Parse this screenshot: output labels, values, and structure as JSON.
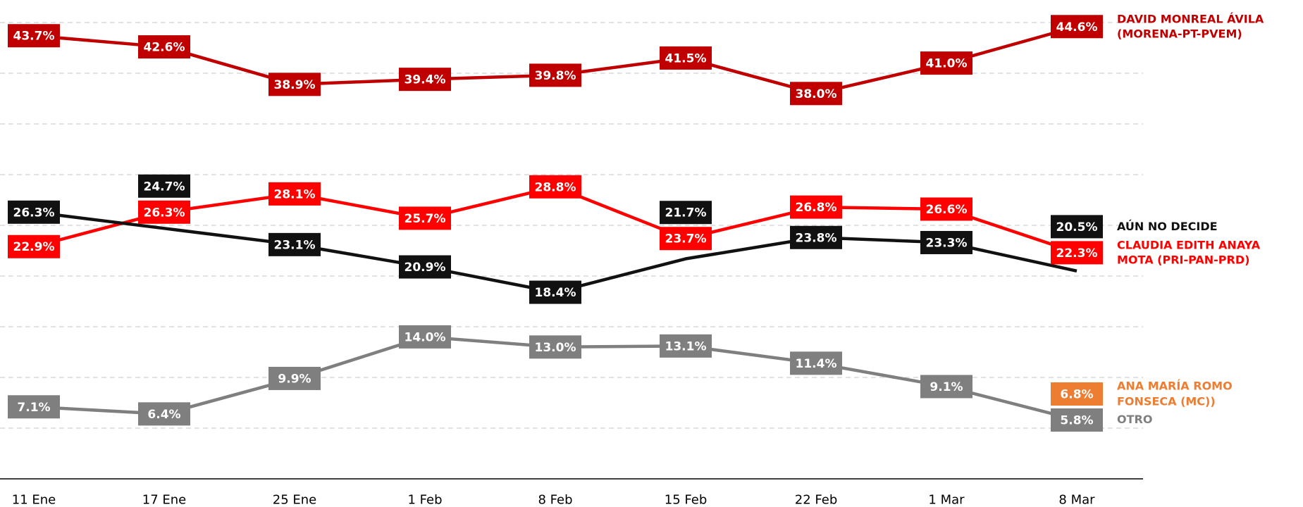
{
  "chart_data": {
    "type": "line",
    "categories": [
      "11 Ene",
      "17 Ene",
      "25 Ene",
      "1 Feb",
      "8 Feb",
      "15 Feb",
      "22 Feb",
      "1 Mar",
      "8 Mar"
    ],
    "ylim": [
      0,
      45
    ],
    "yticks": [
      0,
      5,
      10,
      15,
      20,
      25,
      30,
      35,
      40,
      45
    ],
    "grid": true,
    "series": [
      {
        "name": "DAVID MONREAL ÁVILA (MORENA-PT-PVEM)",
        "color": "#c00000",
        "values": [
          43.7,
          42.6,
          38.9,
          39.4,
          39.8,
          41.5,
          38.0,
          41.0,
          44.6
        ],
        "value_labels": [
          "43.7%",
          "42.6%",
          "38.9%",
          "39.4%",
          "39.8%",
          "41.5%",
          "38.0%",
          "41.0%",
          "44.6%"
        ]
      },
      {
        "name": "CLAUDIA EDITH ANAYA MOTA (PRI-PAN-PRD)",
        "color": "#ff0000",
        "values": [
          22.9,
          26.3,
          28.1,
          25.7,
          28.8,
          23.7,
          26.8,
          26.6,
          22.3
        ],
        "value_labels": [
          "22.9%",
          "26.3%",
          "28.1%",
          "25.7%",
          "28.8%",
          "23.7%",
          "26.8%",
          "26.6%",
          "22.3%"
        ]
      },
      {
        "name": "AÚN NO DECIDE",
        "color": "#111111",
        "values": [
          26.3,
          24.7,
          23.1,
          20.9,
          18.4,
          21.7,
          23.8,
          23.3,
          20.5
        ],
        "value_labels": [
          "26.3%",
          "24.7%",
          "23.1%",
          "20.9%",
          "18.4%",
          "21.7%",
          "23.8%",
          "23.3%",
          "20.5%"
        ]
      },
      {
        "name": "OTRO",
        "color": "#7f7f7f",
        "values": [
          7.1,
          6.4,
          9.9,
          14.0,
          13.0,
          13.1,
          11.4,
          9.1,
          5.8
        ],
        "value_labels": [
          "7.1%",
          "6.4%",
          "9.9%",
          "14.0%",
          "13.0%",
          "13.1%",
          "11.4%",
          "9.1%",
          "5.8%"
        ]
      },
      {
        "name": "ANA MARÍA ROMO FONSECA (MC))",
        "color": "#ed7d31",
        "values": [
          null,
          null,
          null,
          null,
          null,
          null,
          null,
          null,
          6.8
        ],
        "value_labels": [
          null,
          null,
          null,
          null,
          null,
          null,
          null,
          null,
          "6.8%"
        ]
      }
    ]
  }
}
